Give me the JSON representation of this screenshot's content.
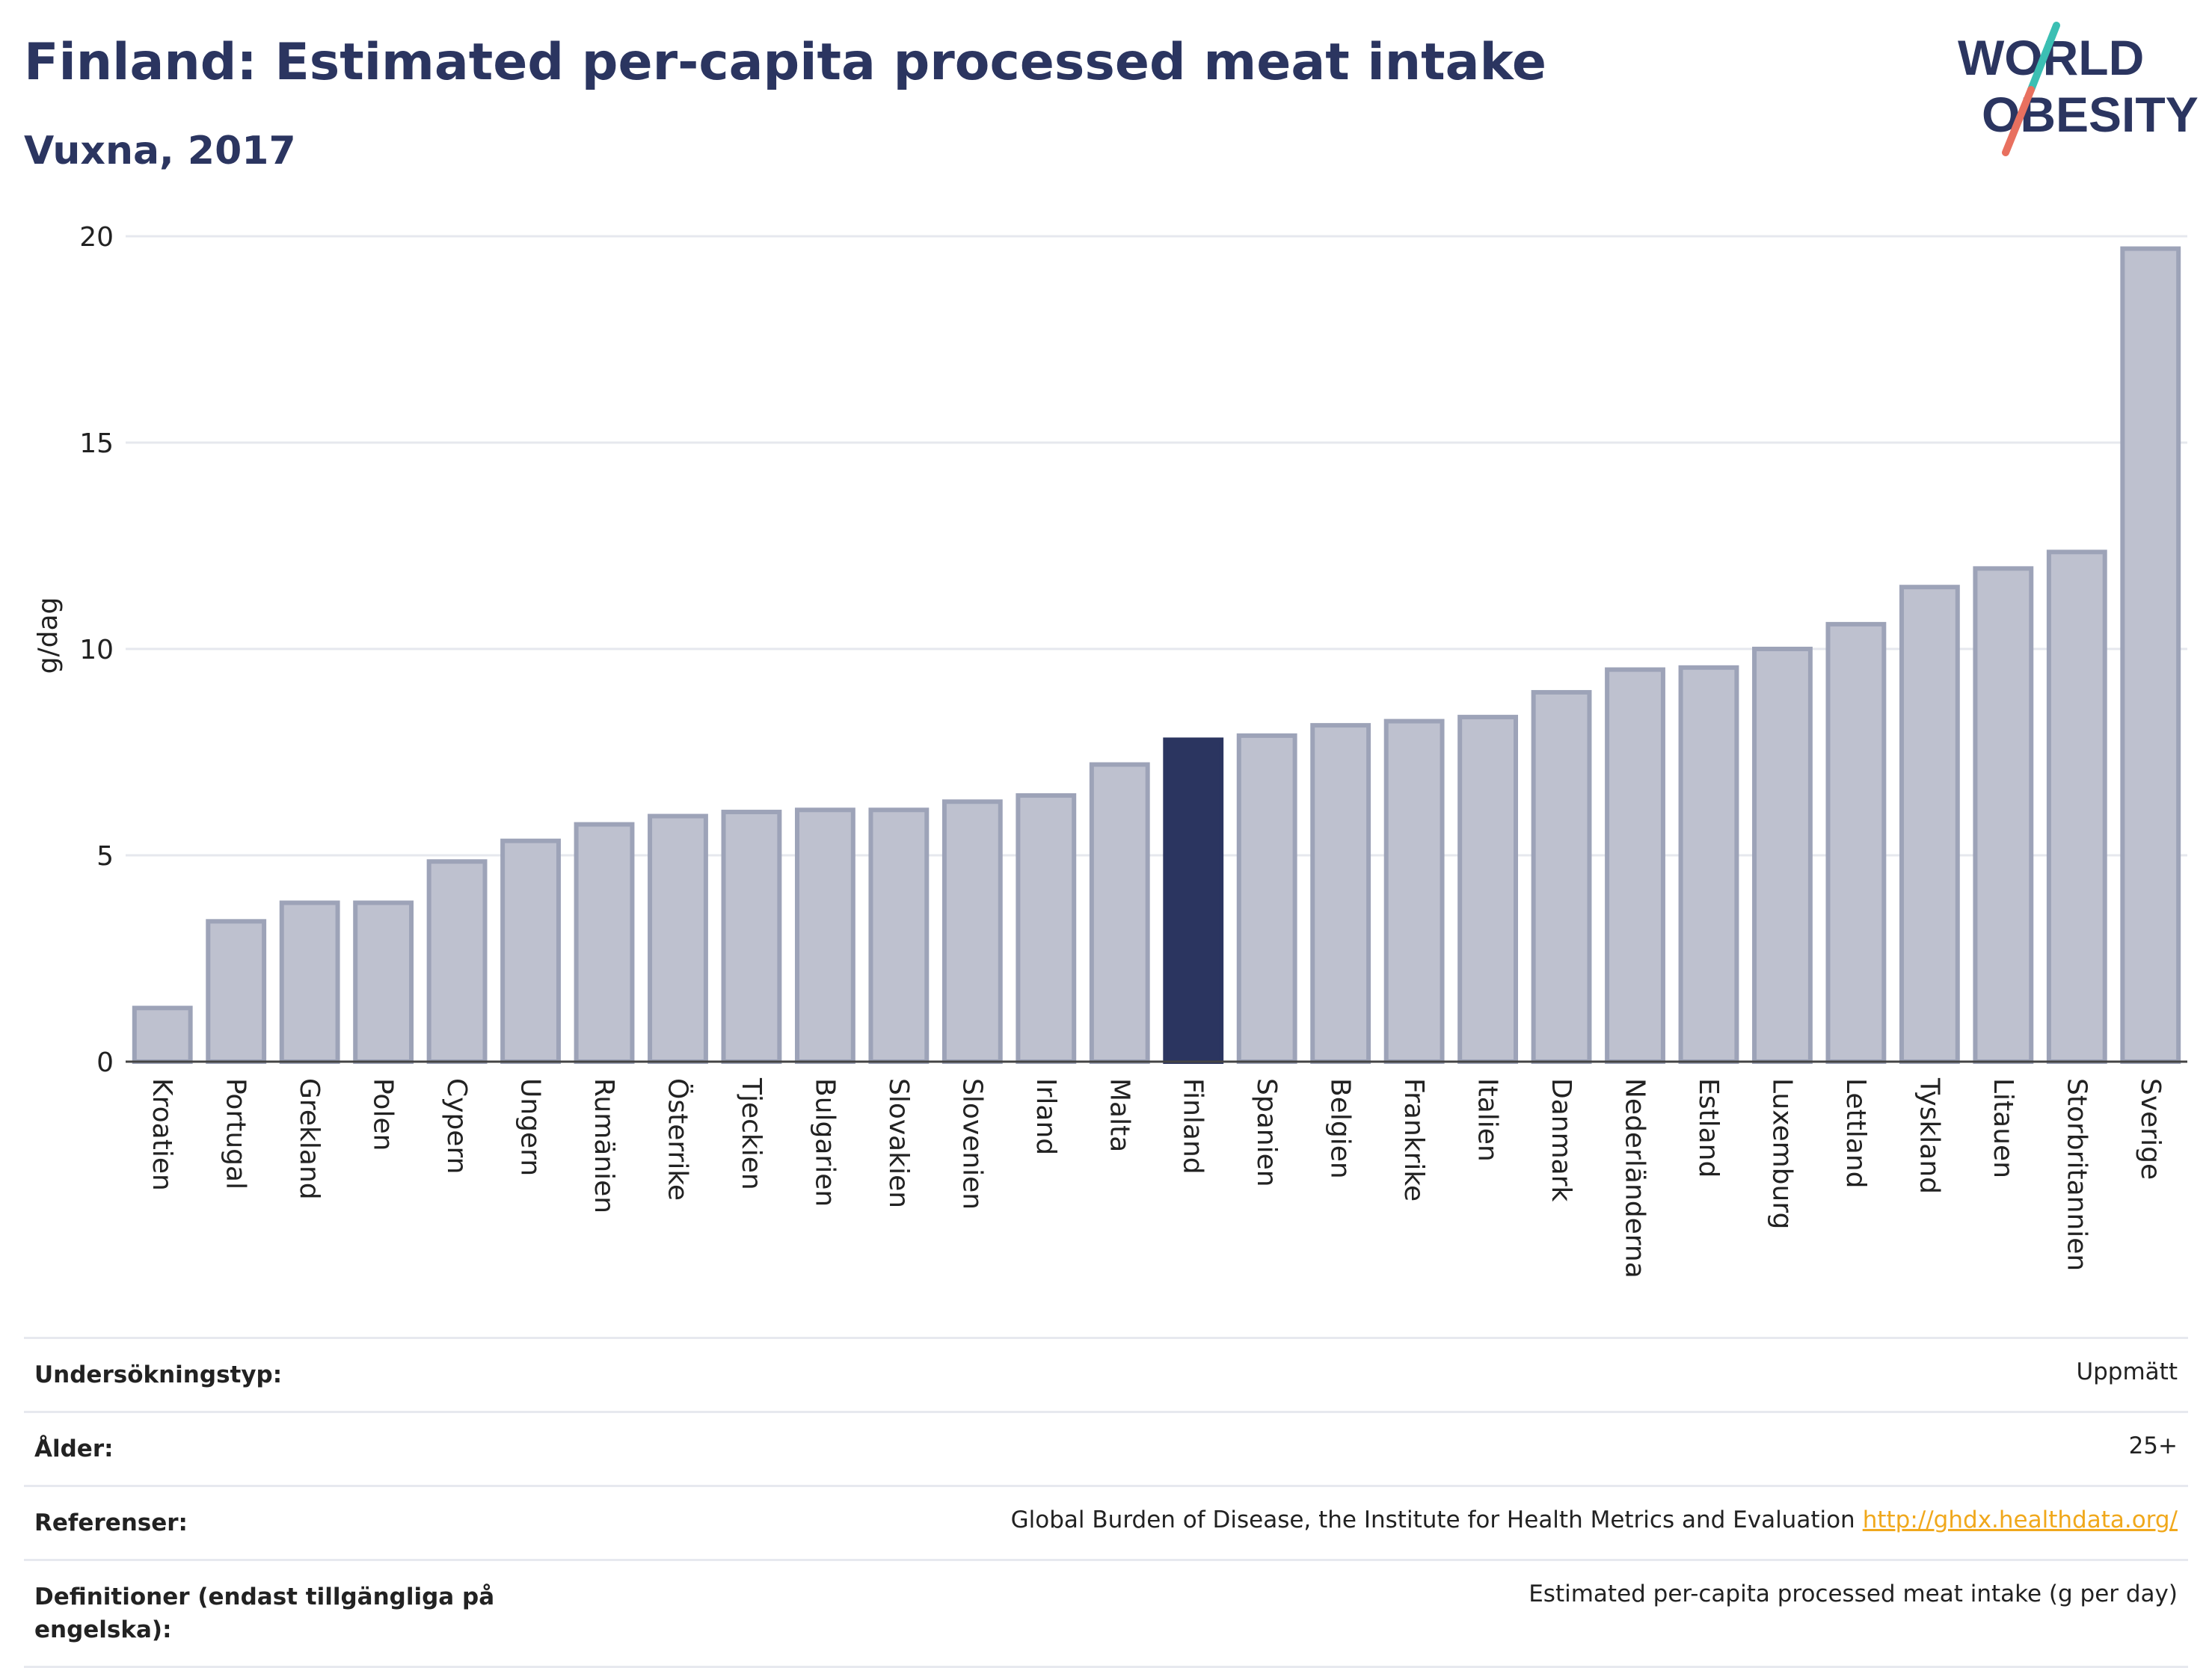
{
  "title": "Finland: Estimated per-capita processed meat intake",
  "subtitle": "Vuxna, 2017",
  "logo": {
    "line1": "WORLD",
    "line2": "OBESITY"
  },
  "colors": {
    "highlight": "#2b3560",
    "bar_fill": "#bec1cf",
    "bar_stroke": "#9da3b8",
    "title": "#2b3560",
    "link": "#f0a81c",
    "accent_teal": "#3bbfb3",
    "accent_coral": "#e8705f"
  },
  "chart_data": {
    "type": "bar",
    "ylabel": "g/dag",
    "ylim": [
      0,
      20
    ],
    "yticks": [
      0,
      5,
      10,
      15,
      20
    ],
    "grid": true,
    "highlight_category": "Finland",
    "categories": [
      "Kroatien",
      "Portugal",
      "Grekland",
      "Polen",
      "Cypern",
      "Ungern",
      "Rumänien",
      "Österrike",
      "Tjeckien",
      "Bulgarien",
      "Slovakien",
      "Slovenien",
      "Irland",
      "Malta",
      "Finland",
      "Spanien",
      "Belgien",
      "Frankrike",
      "Italien",
      "Danmark",
      "Nederländerna",
      "Estland",
      "Luxemburg",
      "Lettland",
      "Tyskland",
      "Litauen",
      "Storbritannien",
      "Sverige"
    ],
    "values": [
      1.3,
      3.4,
      3.85,
      3.85,
      4.85,
      5.35,
      5.75,
      5.95,
      6.05,
      6.1,
      6.1,
      6.3,
      6.45,
      7.2,
      7.8,
      7.9,
      8.15,
      8.25,
      8.35,
      8.95,
      9.5,
      9.55,
      10.0,
      10.6,
      11.5,
      11.95,
      12.35,
      19.7
    ]
  },
  "info": [
    {
      "key": "Undersökningstyp:",
      "value": "Uppmätt"
    },
    {
      "key": "Ålder:",
      "value": "25+"
    },
    {
      "key": "Referenser:",
      "value": "Global Burden of Disease, the Institute for Health Metrics and Evaluation",
      "link": "http://ghdx.healthdata.org/"
    },
    {
      "key": "Definitioner (endast tillgängliga på engelska):",
      "value": "Estimated per-capita processed meat intake (g per day)"
    }
  ]
}
